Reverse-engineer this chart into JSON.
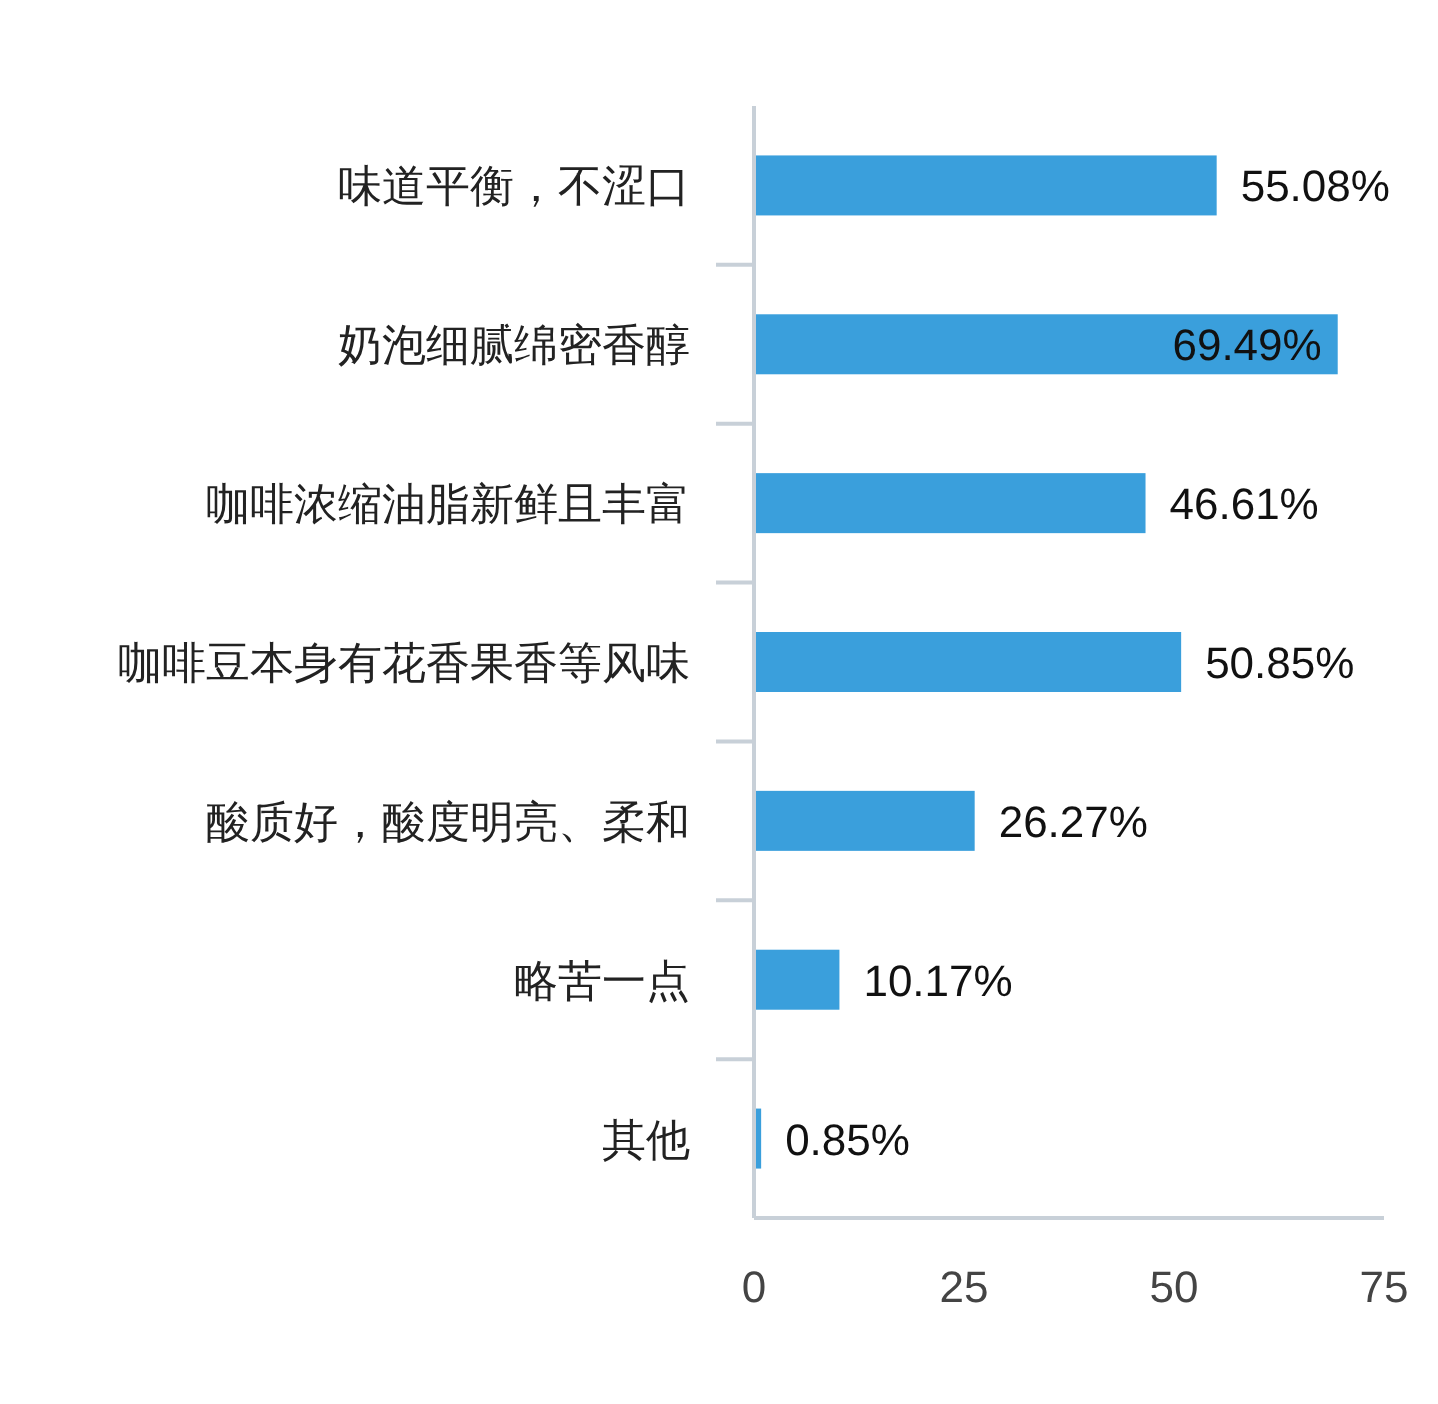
{
  "chart_data": {
    "type": "bar",
    "orientation": "horizontal",
    "categories": [
      "味道平衡，不涩口",
      "奶泡细腻绵密香醇",
      "咖啡浓缩油脂新鲜且丰富",
      "咖啡豆本身有花香果香等风味",
      "酸质好，酸度明亮、柔和",
      "略苦一点",
      "其他"
    ],
    "values": [
      55.08,
      69.49,
      46.61,
      50.85,
      26.27,
      10.17,
      0.85
    ],
    "value_labels": [
      "55.08%",
      "69.49%",
      "46.61%",
      "50.85%",
      "26.27%",
      "10.17%",
      "0.85%"
    ],
    "color": "#3a9fdc",
    "xlim": [
      0,
      75
    ],
    "xticks": [
      0,
      25,
      50,
      75
    ],
    "grid": false
  }
}
